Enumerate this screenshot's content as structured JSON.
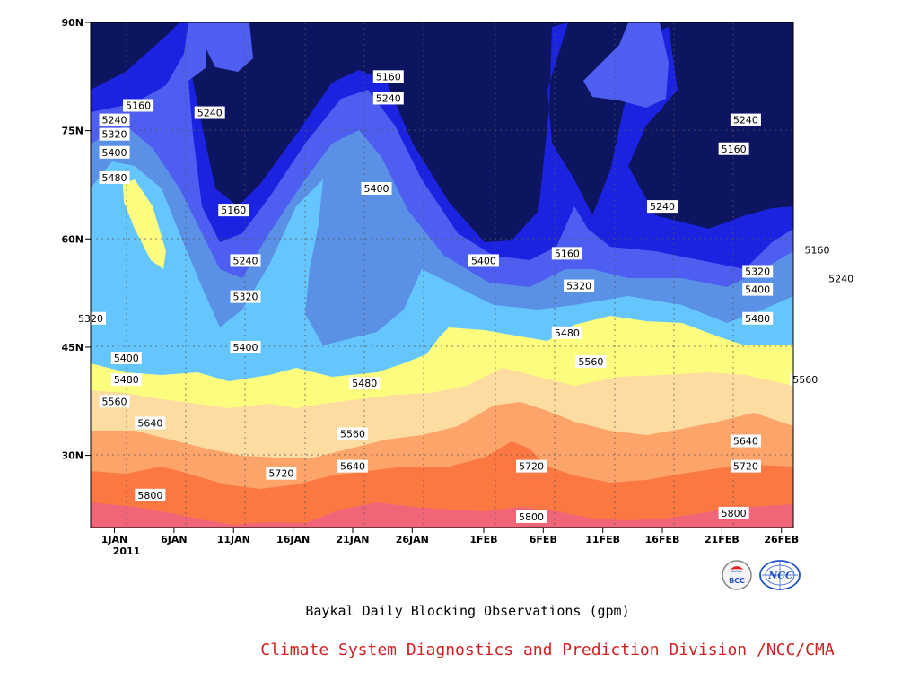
{
  "chart_data": {
    "type": "heatmap",
    "subtype": "filled-contour",
    "title": "Baykal Daily Blocking Observations (gpm)",
    "x_ticks": [
      "1JAN",
      "6JAN",
      "11JAN",
      "16JAN",
      "21JAN",
      "26JAN",
      "1FEB",
      "6FEB",
      "11FEB",
      "16FEB",
      "21FEB",
      "26FEB"
    ],
    "x_year_label": "2011",
    "y_ticks": [
      "30N",
      "45N",
      "60N",
      "75N",
      "90N"
    ],
    "x_range": [
      "30DEC2010",
      "26FEB2011"
    ],
    "y_range": [
      20,
      90
    ],
    "grid": true,
    "contour_levels": [
      5160,
      5240,
      5320,
      5400,
      5480,
      5560,
      5640,
      5720,
      5800
    ],
    "fill_colors": {
      "below_5160": "#0e1560",
      "5160_5240": "#1b22e0",
      "5240_5320": "#4d5ef0",
      "5320_5400": "#5a90e6",
      "5400_5480": "#64c6fc",
      "5480_5560": "#fcfc7e",
      "5560_5640": "#fcdca0",
      "5640_5720": "#fca46a",
      "5720_5800": "#fc7842",
      "above_5800": "#f06678"
    },
    "contour_labels": [
      {
        "value": "5160",
        "day": 2,
        "lat": 78.5
      },
      {
        "value": "5240",
        "day": 0,
        "lat": 76.5
      },
      {
        "value": "5320",
        "day": 0,
        "lat": 74.5
      },
      {
        "value": "5400",
        "day": 0,
        "lat": 72
      },
      {
        "value": "5480",
        "day": 0,
        "lat": 68.5
      },
      {
        "value": "5320",
        "day": -2,
        "lat": 49
      },
      {
        "value": "5400",
        "day": 1,
        "lat": 43.5
      },
      {
        "value": "5480",
        "day": 1,
        "lat": 40.5
      },
      {
        "value": "5560",
        "day": 0,
        "lat": 37.5
      },
      {
        "value": "5640",
        "day": 3,
        "lat": 34.5
      },
      {
        "value": "5800",
        "day": 3,
        "lat": 24.5
      },
      {
        "value": "5240",
        "day": 8,
        "lat": 77.5
      },
      {
        "value": "5160",
        "day": 10,
        "lat": 64
      },
      {
        "value": "5240",
        "day": 11,
        "lat": 57
      },
      {
        "value": "5320",
        "day": 11,
        "lat": 52
      },
      {
        "value": "5400",
        "day": 11,
        "lat": 45
      },
      {
        "value": "5720",
        "day": 14,
        "lat": 27.5
      },
      {
        "value": "5160",
        "day": 23,
        "lat": 82.5
      },
      {
        "value": "5240",
        "day": 23,
        "lat": 79.5
      },
      {
        "value": "5400",
        "day": 22,
        "lat": 67
      },
      {
        "value": "5480",
        "day": 21,
        "lat": 40
      },
      {
        "value": "5560",
        "day": 20,
        "lat": 33
      },
      {
        "value": "5640",
        "day": 20,
        "lat": 28.5
      },
      {
        "value": "5400",
        "day": 31,
        "lat": 57
      },
      {
        "value": "5720",
        "day": 35,
        "lat": 28.5
      },
      {
        "value": "5800",
        "day": 35,
        "lat": 21.5
      },
      {
        "value": "5160",
        "day": 38,
        "lat": 58
      },
      {
        "value": "5320",
        "day": 39,
        "lat": 53.5
      },
      {
        "value": "5480",
        "day": 38,
        "lat": 47
      },
      {
        "value": "5560",
        "day": 40,
        "lat": 43
      },
      {
        "value": "5240",
        "day": 46,
        "lat": 64.5
      },
      {
        "value": "5240",
        "day": 53,
        "lat": 76.5
      },
      {
        "value": "5160",
        "day": 52,
        "lat": 72.5
      },
      {
        "value": "5320",
        "day": 54,
        "lat": 55.5
      },
      {
        "value": "5400",
        "day": 54,
        "lat": 53
      },
      {
        "value": "5480",
        "day": 54,
        "lat": 49
      },
      {
        "value": "5560",
        "day": 58,
        "lat": 40.5
      },
      {
        "value": "5640",
        "day": 53,
        "lat": 32
      },
      {
        "value": "5720",
        "day": 53,
        "lat": 28.5
      },
      {
        "value": "5800",
        "day": 52,
        "lat": 22
      },
      {
        "value": "5160",
        "day": 59,
        "lat": 58.5
      },
      {
        "value": "5240",
        "day": 61,
        "lat": 54.5
      }
    ]
  },
  "caption": "Baykal Daily Blocking Observations (gpm)",
  "footer": "Climate System Diagnostics and Prediction Division /NCC/CMA",
  "logos": {
    "left_text": "BCC",
    "right_text": "NCC"
  }
}
